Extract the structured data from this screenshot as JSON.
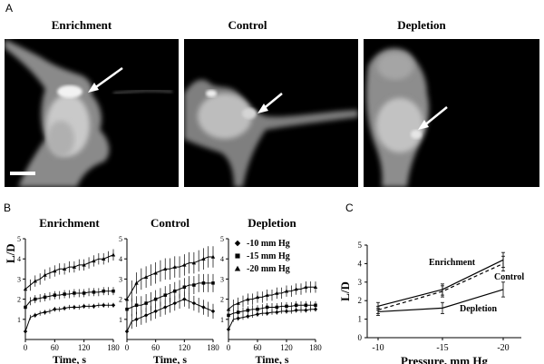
{
  "panelA": {
    "letter": "A",
    "images": [
      {
        "title": "Enrichment"
      },
      {
        "title": "Control"
      },
      {
        "title": "Depletion"
      }
    ]
  },
  "panelB": {
    "letter": "B",
    "ylabel": "L/D",
    "xlabel": "Time, s",
    "legend": [
      {
        "symbol": "diamond",
        "label": "-10 mm Hg"
      },
      {
        "symbol": "square",
        "label": "-15 mm Hg"
      },
      {
        "symbol": "triangle",
        "label": "-20 mm Hg"
      }
    ]
  },
  "panelC": {
    "letter": "C",
    "ylabel": "L/D",
    "xlabel": "Pressure, mm Hg",
    "curve_labels": [
      "Enrichment",
      "Control",
      "Depletion"
    ]
  },
  "chart_data": [
    {
      "type": "line",
      "title": "Enrichment",
      "x": [
        0,
        10,
        20,
        30,
        40,
        50,
        60,
        70,
        80,
        90,
        100,
        110,
        120,
        130,
        140,
        150,
        160,
        170,
        180
      ],
      "xticks": [
        0,
        60,
        120,
        180
      ],
      "yticks": [
        1,
        2,
        3,
        4,
        5
      ],
      "xlim": [
        0,
        180
      ],
      "ylim": [
        0,
        5
      ],
      "xlabel": "Time, s",
      "ylabel": "L/D",
      "series": [
        {
          "values": [
            0.4,
            1.1,
            1.2,
            1.3,
            1.35,
            1.4,
            1.5,
            1.5,
            1.55,
            1.6,
            1.6,
            1.6,
            1.65,
            1.65,
            1.65,
            1.7,
            1.7,
            1.7,
            1.7
          ]
        },
        {
          "values": [
            1.6,
            1.9,
            2.0,
            2.05,
            2.1,
            2.15,
            2.2,
            2.2,
            2.25,
            2.25,
            2.3,
            2.3,
            2.3,
            2.35,
            2.35,
            2.35,
            2.4,
            2.4,
            2.4
          ]
        },
        {
          "values": [
            2.5,
            2.7,
            2.9,
            3.0,
            3.2,
            3.3,
            3.4,
            3.5,
            3.5,
            3.6,
            3.6,
            3.7,
            3.7,
            3.8,
            3.9,
            4.0,
            4.0,
            4.1,
            4.2
          ]
        }
      ]
    },
    {
      "type": "line",
      "title": "Control",
      "x": [
        0,
        10,
        20,
        30,
        40,
        50,
        60,
        70,
        80,
        90,
        100,
        110,
        120,
        130,
        140,
        150,
        160,
        170,
        180
      ],
      "xticks": [
        0,
        60,
        120,
        180
      ],
      "yticks": [
        1,
        2,
        3,
        4,
        5
      ],
      "xlim": [
        0,
        180
      ],
      "ylim": [
        0,
        5
      ],
      "xlabel": "Time, s",
      "ylabel": "",
      "series": [
        {
          "values": [
            0.4,
            0.9,
            1.0,
            1.1,
            1.2,
            1.3,
            1.4,
            1.5,
            1.6,
            1.7,
            1.8,
            1.9,
            2.0,
            1.9,
            1.8,
            1.7,
            1.6,
            1.5,
            1.4
          ]
        },
        {
          "values": [
            1.5,
            1.6,
            1.7,
            1.7,
            1.8,
            1.9,
            2.0,
            2.1,
            2.2,
            2.3,
            2.4,
            2.5,
            2.6,
            2.7,
            2.7,
            2.8,
            2.8,
            2.8,
            2.8
          ]
        },
        {
          "values": [
            2.0,
            2.4,
            2.8,
            3.0,
            3.1,
            3.2,
            3.3,
            3.4,
            3.5,
            3.5,
            3.6,
            3.6,
            3.7,
            3.8,
            3.8,
            3.9,
            4.0,
            4.1,
            4.1
          ]
        }
      ]
    },
    {
      "type": "line",
      "title": "Depletion",
      "x": [
        0,
        10,
        20,
        30,
        40,
        50,
        60,
        70,
        80,
        90,
        100,
        110,
        120,
        130,
        140,
        150,
        160,
        170,
        180
      ],
      "xticks": [
        0,
        60,
        120,
        180
      ],
      "yticks": [
        1,
        2,
        3,
        4,
        5
      ],
      "xlim": [
        0,
        180
      ],
      "ylim": [
        0,
        5
      ],
      "xlabel": "Time, s",
      "ylabel": "",
      "series": [
        {
          "values": [
            0.5,
            1.0,
            1.05,
            1.1,
            1.15,
            1.2,
            1.25,
            1.3,
            1.3,
            1.35,
            1.35,
            1.4,
            1.4,
            1.4,
            1.45,
            1.45,
            1.45,
            1.5,
            1.5
          ]
        },
        {
          "values": [
            1.2,
            1.3,
            1.35,
            1.4,
            1.45,
            1.5,
            1.5,
            1.55,
            1.6,
            1.6,
            1.6,
            1.65,
            1.65,
            1.65,
            1.7,
            1.7,
            1.7,
            1.7,
            1.7
          ]
        },
        {
          "values": [
            1.5,
            1.7,
            1.8,
            1.9,
            2.0,
            2.0,
            2.1,
            2.1,
            2.2,
            2.2,
            2.3,
            2.3,
            2.4,
            2.4,
            2.5,
            2.5,
            2.6,
            2.6,
            2.6
          ]
        }
      ]
    },
    {
      "type": "line",
      "title": "",
      "categories": [
        "-10",
        "-15",
        "-20"
      ],
      "xlim": [
        -10,
        -20
      ],
      "ylim": [
        0,
        5
      ],
      "yticks": [
        0,
        1,
        2,
        3,
        4,
        5
      ],
      "xlabel": "Pressure, mm Hg",
      "ylabel": "L/D",
      "series": [
        {
          "name": "Enrichment",
          "values": [
            1.7,
            2.6,
            4.2
          ],
          "style": "solid"
        },
        {
          "name": "Control",
          "values": [
            1.5,
            2.5,
            4.0
          ],
          "style": "dashed"
        },
        {
          "name": "Depletion",
          "values": [
            1.4,
            1.6,
            2.6
          ],
          "style": "solid"
        }
      ]
    }
  ]
}
